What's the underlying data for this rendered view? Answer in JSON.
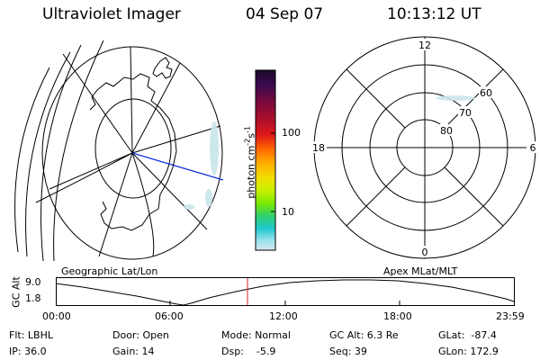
{
  "header": {
    "title": "Ultraviolet Imager",
    "date": "04 Sep 07",
    "time": "10:13:12 UT"
  },
  "geo_panel": {
    "label": "Geographic Lat/Lon"
  },
  "polar_panel": {
    "label": "Apex MLat/MLT",
    "mlt_labels": [
      "12",
      "18",
      "6",
      "0"
    ],
    "lat_labels": [
      "60",
      "70",
      "80"
    ]
  },
  "colorbar": {
    "unit": "photon cm",
    "unit_sup1": "-2",
    "unit_mid": "s",
    "unit_sup2": "-1",
    "ticks": [
      "100",
      "10"
    ],
    "colors": [
      "#1a0a2a",
      "#3a0a50",
      "#7a0a3a",
      "#b0102a",
      "#e01818",
      "#ff6a00",
      "#ffb000",
      "#f0e000",
      "#c8f000",
      "#7ae800",
      "#30d070",
      "#20c8d0",
      "#90e0ea",
      "#d8e8ee"
    ]
  },
  "altitude_plot": {
    "ylabel": "GC Alt",
    "yticks": [
      "9.0",
      "1.8"
    ],
    "xticks": [
      "00:00",
      "06:00",
      "12:00",
      "18:00",
      "23:59"
    ],
    "marker_time": "10:13:12"
  },
  "info": {
    "flt": "Flt: LBHL",
    "ip": "IP: 36.0",
    "door": "Door: Open",
    "gain": "Gain: 14",
    "mode": "Mode: Normal",
    "dsp": "Dsp:    -5.9",
    "gcalt": "GC Alt: 6.3 Re",
    "seq": "Seq: 39",
    "glat": "GLat:  -87.4",
    "glon": "GLon: 172.9"
  }
}
